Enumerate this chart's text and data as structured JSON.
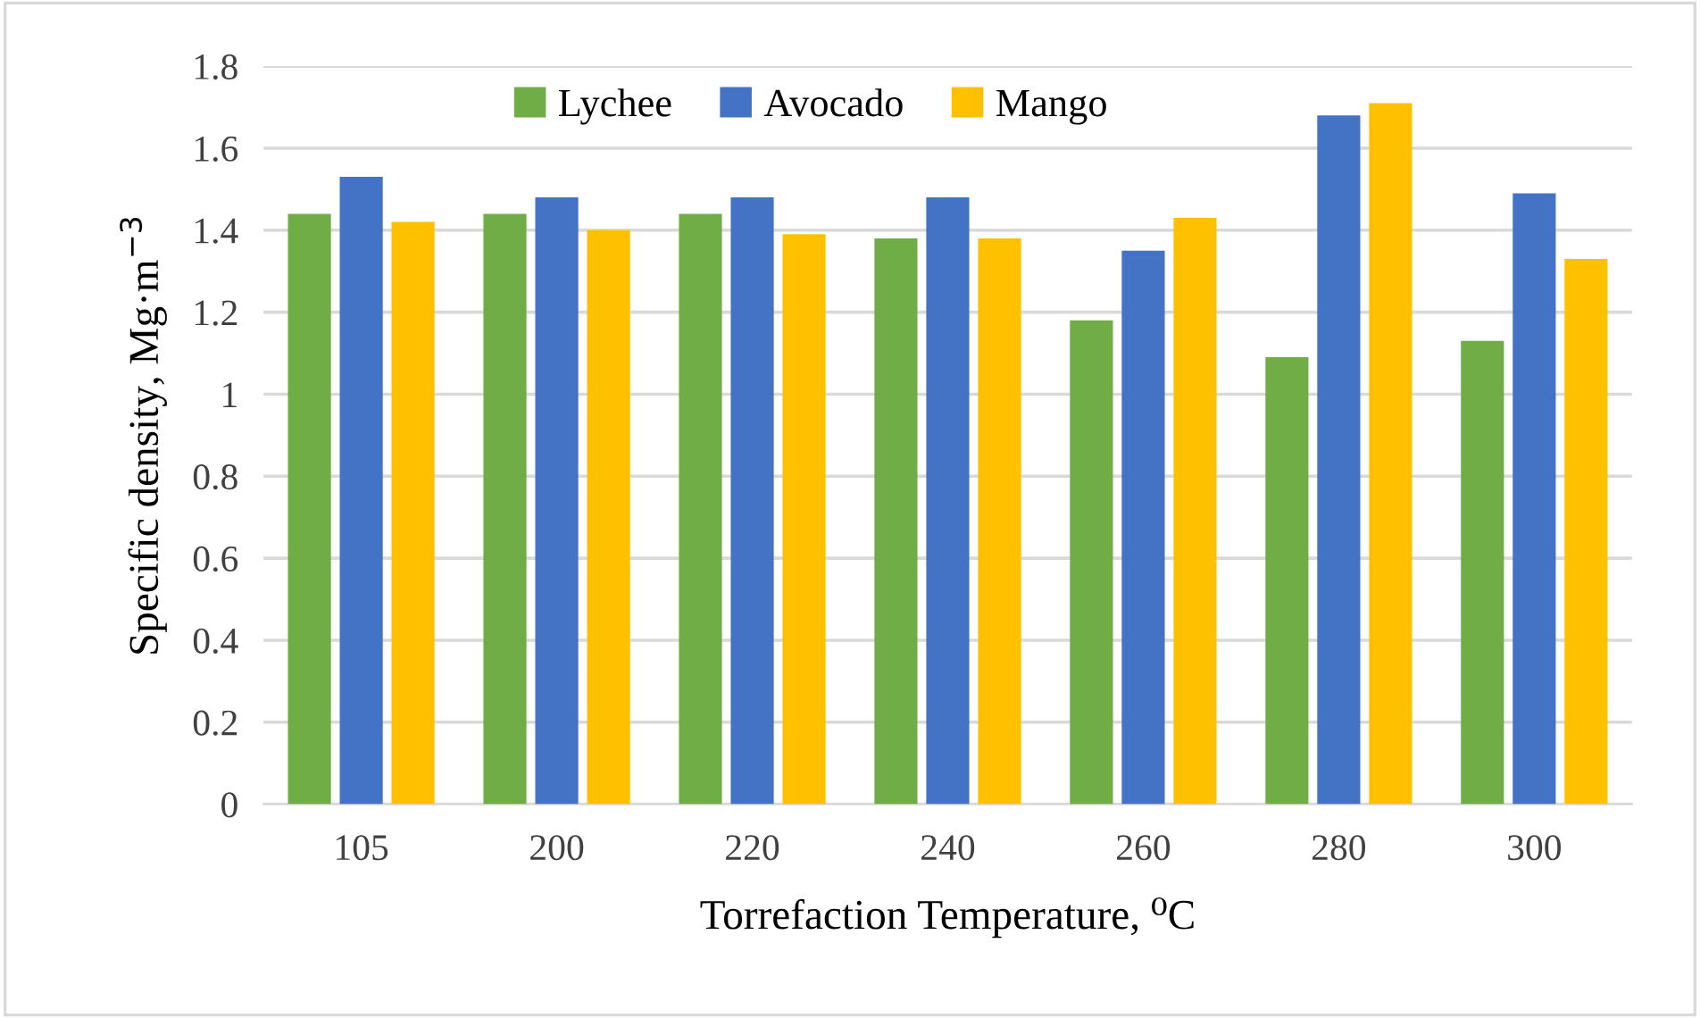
{
  "chart_data": {
    "type": "bar",
    "xlabel": "Torrefaction Temperature, ⁰C",
    "ylabel": "Specific density, Mg·m$^{−3}$",
    "categories": [
      "105",
      "200",
      "220",
      "240",
      "260",
      "280",
      "300"
    ],
    "series": [
      {
        "name": "Lychee",
        "color": "#70ad47",
        "values": [
          1.44,
          1.44,
          1.44,
          1.38,
          1.18,
          1.09,
          1.13
        ]
      },
      {
        "name": "Avocado",
        "color": "#4472c4",
        "values": [
          1.53,
          1.48,
          1.48,
          1.48,
          1.35,
          1.68,
          1.49
        ]
      },
      {
        "name": "Mango",
        "color": "#ffc000",
        "values": [
          1.42,
          1.4,
          1.39,
          1.38,
          1.43,
          1.71,
          1.33
        ]
      }
    ],
    "ylim": [
      0,
      1.8
    ],
    "yticks": [
      0,
      0.2,
      0.4,
      0.6,
      0.8,
      1,
      1.2,
      1.4,
      1.6,
      1.8
    ],
    "grid": "y",
    "legend": "top"
  }
}
